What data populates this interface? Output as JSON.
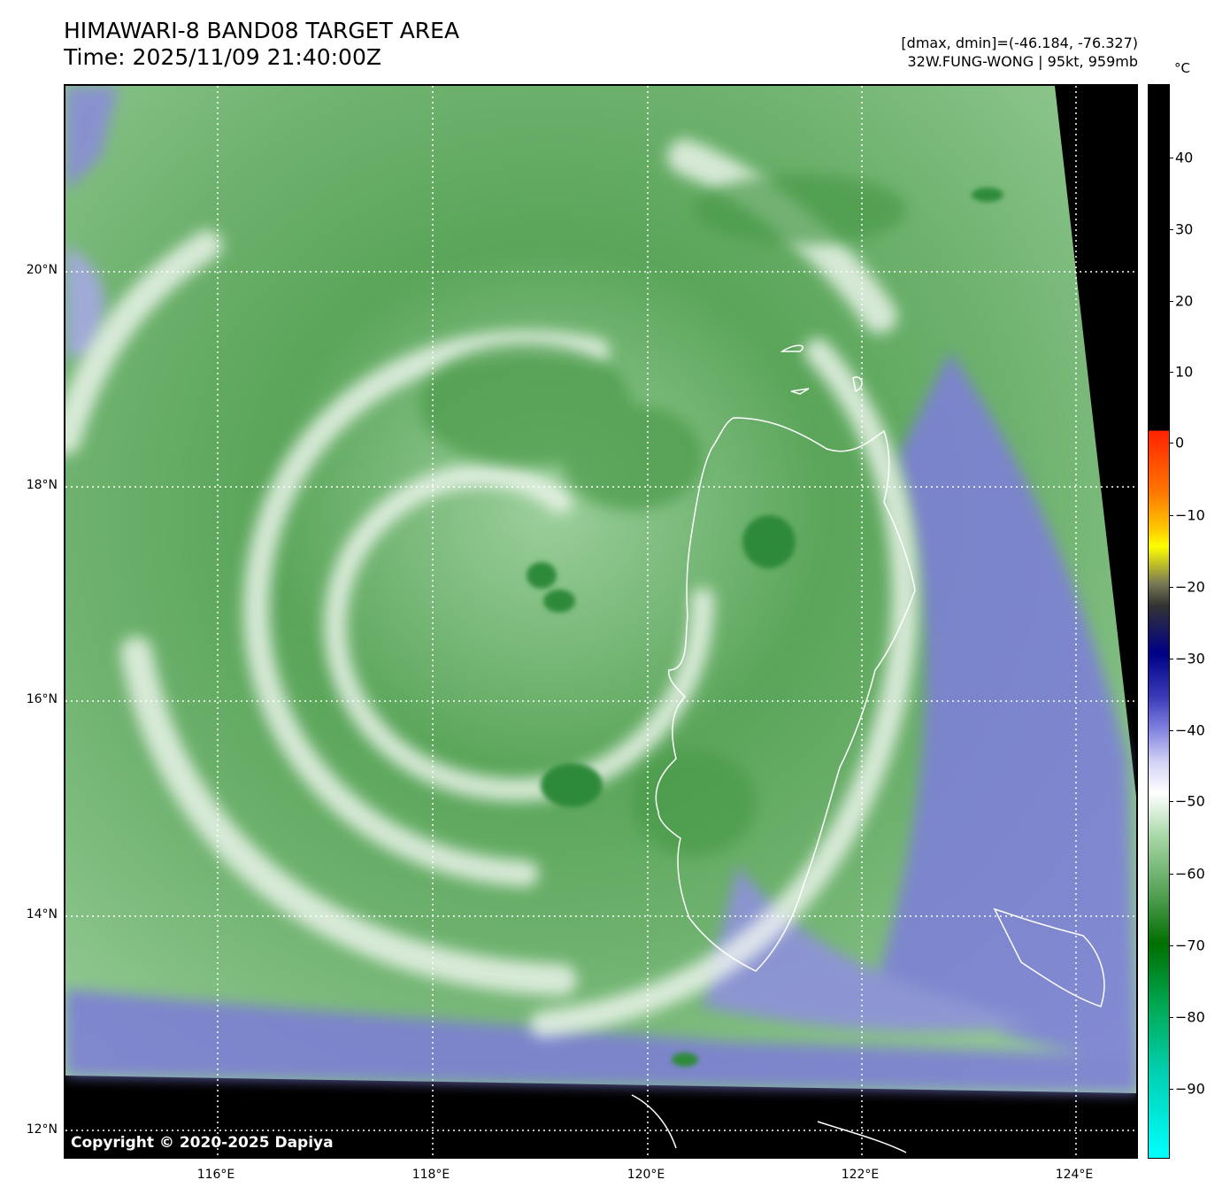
{
  "header": {
    "title_line1": "HIMAWARI-8 BAND08 TARGET AREA",
    "title_line2": "Time: 2025/11/09 21:40:00Z",
    "range_text": "[dmax, dmin]=(-46.184, -76.327)",
    "storm_text": "32W.FUNG-WONG | 95kt, 959mb"
  },
  "map": {
    "copyright": "Copyright © 2020-2025 Dapiya",
    "lat_labels": [
      "20°N",
      "18°N",
      "16°N",
      "14°N",
      "12°N"
    ],
    "lon_labels": [
      "116°E",
      "118°E",
      "120°E",
      "122°E",
      "124°E"
    ],
    "colors": {
      "dry_green": "#3f8f3f",
      "mid_green": "#7fbf7f",
      "cloud_white": "#ffffff",
      "cold_purple": "#6a6ad0",
      "no_data": "#000000"
    }
  },
  "colorbar": {
    "unit": "°C",
    "ticks": [
      "40",
      "30",
      "20",
      "10",
      "0",
      "−10",
      "−20",
      "−30",
      "−40",
      "−50",
      "−60",
      "−70",
      "−80",
      "−90"
    ]
  }
}
